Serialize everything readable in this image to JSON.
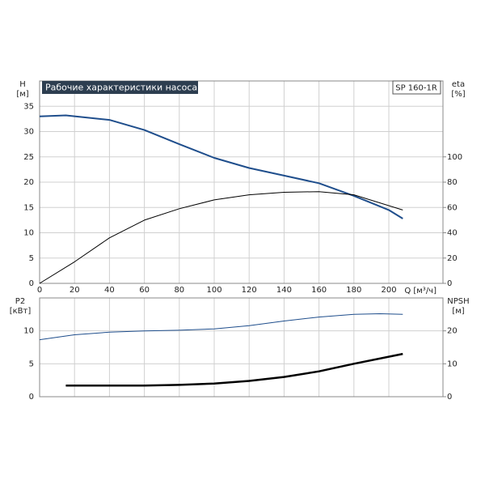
{
  "chart_data": [
    {
      "type": "line",
      "title": "Рабочие характеристики насоса",
      "model": "SP 160-1R",
      "ylabel": "H",
      "yunit": "[м]",
      "y2label": "eta",
      "y2unit": "[%]",
      "xlabel": "Q [м³/ч]",
      "xlim": [
        0,
        231
      ],
      "xticks": [
        0,
        20,
        40,
        60,
        80,
        100,
        120,
        140,
        160,
        180,
        200
      ],
      "ylim": [
        0,
        40
      ],
      "yticks": [
        0,
        5,
        10,
        15,
        20,
        25,
        30,
        35
      ],
      "y2lim": [
        0,
        160
      ],
      "y2ticks": [
        0,
        20,
        40,
        60,
        80,
        100
      ],
      "grid": true,
      "series": [
        {
          "name": "H",
          "color": "#1f4e8c",
          "x": [
            0,
            15,
            40,
            60,
            80,
            100,
            120,
            140,
            160,
            180,
            200,
            208
          ],
          "values": [
            33,
            33.2,
            32.3,
            30.3,
            27.5,
            24.8,
            22.8,
            21.3,
            19.8,
            17.3,
            14.5,
            12.8
          ]
        },
        {
          "name": "eta",
          "color": "#000000",
          "axis": "y2",
          "x": [
            0,
            20,
            40,
            60,
            80,
            100,
            120,
            140,
            160,
            180,
            208
          ],
          "values": [
            0,
            17,
            36,
            50,
            59,
            66,
            70,
            72,
            72.5,
            70,
            58
          ]
        }
      ]
    },
    {
      "type": "line",
      "ylabel": "P2",
      "yunit": "[кВт]",
      "y2label": "NPSH",
      "y2unit": "[м]",
      "xlim": [
        0,
        231
      ],
      "ylim": [
        0,
        15
      ],
      "yticks": [
        0,
        5,
        10
      ],
      "y2lim": [
        0,
        30
      ],
      "y2ticks": [
        0,
        10,
        20
      ],
      "grid": true,
      "series": [
        {
          "name": "P2",
          "color": "#1f4e8c",
          "x": [
            0,
            20,
            40,
            60,
            80,
            100,
            120,
            140,
            160,
            180,
            195,
            208
          ],
          "values": [
            8.66,
            9.4,
            9.8,
            10.0,
            10.1,
            10.3,
            10.8,
            11.5,
            12.1,
            12.5,
            12.6,
            12.5
          ]
        },
        {
          "name": "NPSH",
          "color": "#000000",
          "axis": "y2",
          "x": [
            15,
            60,
            80,
            100,
            120,
            140,
            160,
            180,
            208
          ],
          "values": [
            3.4,
            3.4,
            3.6,
            4.0,
            4.8,
            6.0,
            7.7,
            10.0,
            13.0
          ]
        }
      ]
    }
  ]
}
